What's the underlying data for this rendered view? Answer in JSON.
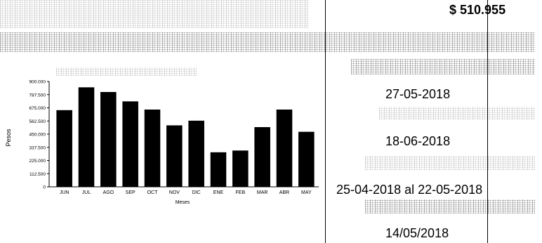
{
  "amount": "$ 510.955",
  "dates": {
    "d1": "27-05-2018",
    "d2": "18-06-2018",
    "period": "25-04-2018 al  22-05-2018",
    "d3": "14/05/2018"
  },
  "colors": {
    "bar": "#000000",
    "text": "#000000",
    "background": "#ffffff"
  },
  "chart_data": {
    "type": "bar",
    "xlabel": "Meses",
    "ylabel": "Pesos",
    "ylim": [
      0,
      900000
    ],
    "ytick_labels": [
      "900.000",
      "787.500",
      "675.000",
      "562.500",
      "450.000",
      "337.500",
      "225.000",
      "112.500",
      "0"
    ],
    "yticks": [
      900000,
      787500,
      675000,
      562500,
      450000,
      337500,
      225000,
      112500,
      0
    ],
    "categories": [
      "JUN",
      "JUL",
      "AGO",
      "SEP",
      "OCT",
      "NOV",
      "DIC",
      "ENE",
      "FEB",
      "MAR",
      "ABR",
      "MAY"
    ],
    "values": [
      655000,
      850000,
      810000,
      730000,
      660000,
      525000,
      565000,
      295000,
      310000,
      510000,
      660000,
      470000
    ]
  }
}
